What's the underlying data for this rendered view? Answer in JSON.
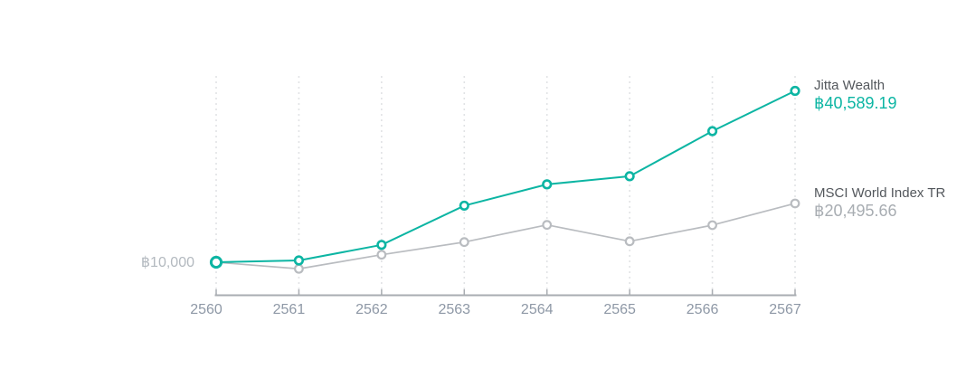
{
  "chart_data": {
    "type": "line",
    "title": "",
    "xlabel": "",
    "ylabel": "",
    "categories": [
      "2560",
      "2561",
      "2562",
      "2563",
      "2564",
      "2565",
      "2566",
      "2567"
    ],
    "series": [
      {
        "name": "Jitta Wealth",
        "color": "#0cb5a3",
        "values": [
          10000,
          10320,
          13100,
          20100,
          23900,
          25350,
          33400,
          40589.19
        ],
        "end_label": "฿40,589.19"
      },
      {
        "name": "MSCI World Index TR",
        "color": "#b9bcc0",
        "values": [
          10000,
          8830,
          11340,
          13600,
          16670,
          13740,
          16620,
          20495.66
        ],
        "end_label": "฿20,495.66"
      }
    ],
    "baseline": {
      "label": "฿10,000",
      "value": 10000
    },
    "ylim": [
      8500,
      42000
    ],
    "grid": "vertical-dotted",
    "legend_position": "right-of-last-point"
  },
  "colors": {
    "jitta_line": "#0cb5a3",
    "msci_line": "#b9bcc0",
    "jitta_value_text": "#0cb5a3",
    "msci_value_text": "#a8adb2",
    "legend_label_text": "#53575c",
    "axis_line": "#a9adb2",
    "tick_label_text": "#8e98a6",
    "baseline_label_text": "#b3b9bf",
    "gridline": "#e1e3e5",
    "marker_fill": "#ffffff"
  }
}
